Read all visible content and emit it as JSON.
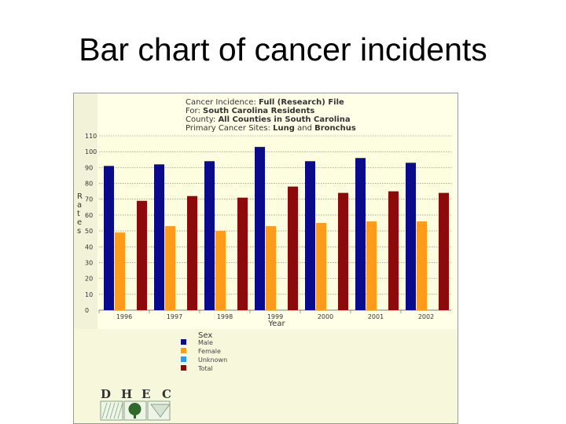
{
  "slide": {
    "title": "Bar chart of cancer incidents"
  },
  "chart_data": {
    "type": "bar",
    "header_lines": [
      {
        "parts": [
          {
            "text": "Cancer Incidence: ",
            "bold": false
          },
          {
            "text": "Full (Research) File",
            "bold": true
          }
        ]
      },
      {
        "parts": [
          {
            "text": "For: ",
            "bold": false
          },
          {
            "text": "South Carolina Residents",
            "bold": true
          }
        ]
      },
      {
        "parts": [
          {
            "text": "County: ",
            "bold": false
          },
          {
            "text": "All Counties in South Carolina",
            "bold": true
          }
        ]
      },
      {
        "parts": [
          {
            "text": "Primary Cancer Sites: ",
            "bold": false
          },
          {
            "text": "Lung",
            "bold": true
          },
          {
            "text": " and ",
            "bold": false
          },
          {
            "text": "Bronchus",
            "bold": true
          }
        ]
      }
    ],
    "categories": [
      "1996",
      "1997",
      "1998",
      "1999",
      "2000",
      "2001",
      "2002"
    ],
    "series": [
      {
        "name": "Male",
        "color": "#0a0a8c",
        "values": [
          91,
          92,
          94,
          103,
          94,
          96,
          93
        ]
      },
      {
        "name": "Female",
        "color": "#ff9b1a",
        "values": [
          49,
          53,
          50,
          53,
          55,
          56,
          56
        ]
      },
      {
        "name": "Unknown",
        "color": "#3399ee",
        "values": [
          0,
          0,
          0,
          0,
          0,
          0,
          0
        ]
      },
      {
        "name": "Total",
        "color": "#8c0a0a",
        "values": [
          69,
          72,
          71,
          78,
          74,
          75,
          74
        ]
      }
    ],
    "ylim": [
      0,
      110
    ],
    "yticks": [
      "0",
      "10",
      "20",
      "30",
      "40",
      "50",
      "60",
      "70",
      "80",
      "90",
      "100",
      "110"
    ],
    "xlabel": "Year",
    "ylabel": "Rates",
    "grid": true,
    "legend": {
      "title": "Sex",
      "position": "bottom-center"
    },
    "logo_letters": [
      "D",
      "H",
      "E",
      "C"
    ],
    "colors": {
      "plot_background": "#fdfde0",
      "panel_background": "#ffffe8",
      "grid": "#7a7a7a"
    }
  }
}
